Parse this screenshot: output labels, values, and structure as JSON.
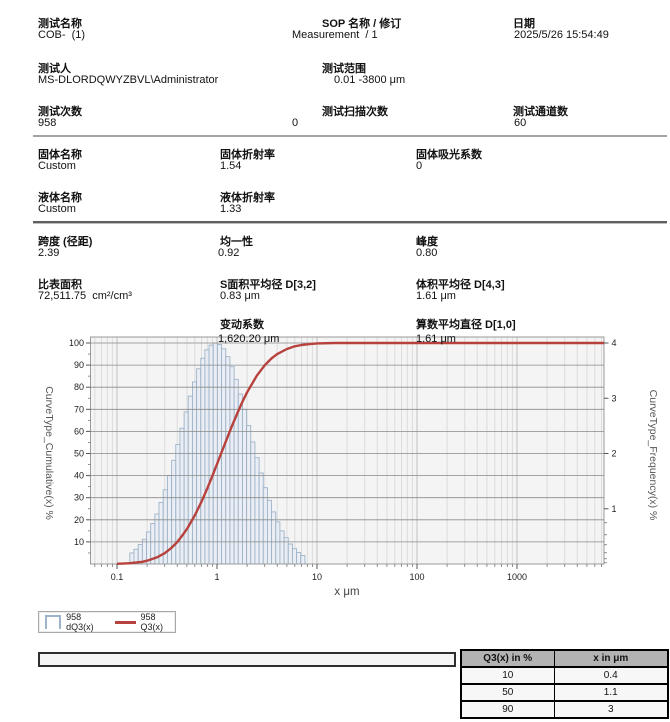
{
  "fields": {
    "test_name": {
      "label": "测试名称",
      "value": "COB-  (1)"
    },
    "sop": {
      "label": "SOP 名称 / 修订",
      "value": "Measurement  / 1"
    },
    "date": {
      "label": "日期",
      "value": "2025/5/26 15:54:49"
    },
    "tester": {
      "label": "测试人",
      "value": "MS-DLORDQWYZBVL\\Administrator"
    },
    "range": {
      "label": "测试范围",
      "value": "0.01 -3800 μm"
    },
    "runs": {
      "label": "测试次数",
      "value": "958"
    },
    "scans": {
      "label": "测试扫描次数",
      "value": "0"
    },
    "channels": {
      "label": "测试通道数",
      "value": "60"
    },
    "solid_name": {
      "label": "固体名称",
      "value": "Custom"
    },
    "solid_ri": {
      "label": "固体折射率",
      "value": "1.54"
    },
    "solid_abs": {
      "label": "固体吸光系数",
      "value": "0"
    },
    "liquid_name": {
      "label": "液体名称",
      "value": "Custom"
    },
    "liquid_ri": {
      "label": "液体折射率",
      "value": "1.33"
    },
    "span": {
      "label": "跨度 (径距)",
      "value": "2.39"
    },
    "uniformity": {
      "label": "均一性",
      "value": "0.92"
    },
    "kurtosis": {
      "label": "峰度",
      "value": "0.80"
    },
    "ssa": {
      "label": "比表面积",
      "value": "72,511.75  cm²/cm³"
    },
    "d32": {
      "label": "S面积平均径 D[3,2]",
      "value": "0.83 μm"
    },
    "d43": {
      "label": "体积平均径 D[4,3]",
      "value": "1.61 μm"
    },
    "cv": {
      "label": "变动系数",
      "value": "1,620.20 μm"
    },
    "d10mean": {
      "label": "算数平均直径 D[1,0]",
      "value": "1.61 μm"
    }
  },
  "chart_data": {
    "type": "bar",
    "subtype": "log-histogram with cumulative line",
    "title": "",
    "xlabel": "x μm",
    "ylabel_left": "CurveType_Cumulative(x) %",
    "ylabel_right": "CurveType_Frequency(x) %",
    "x_scale": "log",
    "xlim": [
      0.055,
      7400
    ],
    "ylim_left": [
      0,
      100
    ],
    "ylim_right": [
      0,
      4.2
    ],
    "x_ticks": [
      0.1,
      1,
      10,
      100,
      1000
    ],
    "left_ticks": [
      10,
      20,
      30,
      40,
      50,
      60,
      70,
      80,
      90,
      100
    ],
    "right_ticks": [
      1,
      2,
      3,
      4
    ],
    "grid": true,
    "legend_position": "bottom-left",
    "series": [
      {
        "name": "958 dQ3(x)",
        "type": "bar",
        "color": "#9db3c8",
        "x": [
          0.141,
          0.155,
          0.171,
          0.188,
          0.207,
          0.228,
          0.251,
          0.276,
          0.304,
          0.335,
          0.369,
          0.406,
          0.447,
          0.492,
          0.541,
          0.596,
          0.656,
          0.722,
          0.794,
          0.874,
          0.962,
          1.059,
          1.166,
          1.283,
          1.413,
          1.555,
          1.711,
          1.884,
          2.073,
          2.282,
          2.512,
          2.765,
          3.044,
          3.35,
          3.687,
          4.059,
          4.467,
          4.917,
          5.412,
          5.957,
          6.557,
          7.217
        ],
        "values": [
          0.21,
          0.28,
          0.37,
          0.47,
          0.61,
          0.77,
          0.95,
          1.17,
          1.41,
          1.68,
          1.97,
          2.27,
          2.58,
          2.89,
          3.19,
          3.46,
          3.71,
          3.91,
          4.07,
          4.16,
          4.2,
          4.17,
          4.09,
          3.94,
          3.75,
          3.51,
          3.23,
          2.94,
          2.63,
          2.32,
          2.02,
          1.73,
          1.45,
          1.21,
          0.99,
          0.8,
          0.63,
          0.5,
          0.38,
          0.29,
          0.22,
          0.16
        ]
      },
      {
        "name": "958 Q3(x)",
        "type": "line",
        "color": "#b7423d",
        "x": [
          0.1,
          0.13,
          0.15,
          0.18,
          0.2,
          0.25,
          0.3,
          0.35,
          0.4,
          0.45,
          0.5,
          0.6,
          0.7,
          0.8,
          0.9,
          1.0,
          1.1,
          1.2,
          1.4,
          1.6,
          1.8,
          2.0,
          2.5,
          3.0,
          3.5,
          4.0,
          5.0,
          6.0,
          7.0,
          8.0,
          10,
          15,
          7000
        ],
        "values": [
          0.1,
          0.3,
          0.6,
          1.0,
          1.5,
          3.0,
          4.9,
          7.3,
          9.9,
          12.9,
          15.8,
          22.0,
          28.2,
          34.2,
          39.9,
          45.2,
          50.0,
          54.4,
          62.1,
          68.3,
          73.5,
          77.7,
          85.2,
          89.9,
          93.0,
          95.0,
          97.3,
          98.5,
          99.1,
          99.4,
          99.8,
          100,
          100
        ]
      }
    ],
    "percentiles": {
      "q": [
        10,
        50,
        90
      ],
      "x_um": [
        0.4,
        1.1,
        3
      ]
    }
  },
  "legend": {
    "items": [
      {
        "swatch": "bar",
        "label": "958 dQ3(x)"
      },
      {
        "swatch": "line",
        "label": "958 Q3(x)"
      }
    ]
  },
  "table": {
    "headers": [
      "Q3(x) in %",
      "x in μm"
    ],
    "rows": [
      [
        "10",
        "0.4"
      ],
      [
        "50",
        "1.1"
      ],
      [
        "90",
        "3"
      ]
    ]
  },
  "colors": {
    "curve": "#b7423d",
    "bar_stroke": "#9db3c8",
    "bar_fill": "#e8eef5",
    "plot_bg": "#f4f4f5",
    "grid_minor": "#dcdcdc",
    "grid_major_v": "#c2c2c2",
    "grid_h": "#8a8a8a",
    "frame": "#9a9a9a",
    "table_header_bg": "#b3b3b3"
  }
}
